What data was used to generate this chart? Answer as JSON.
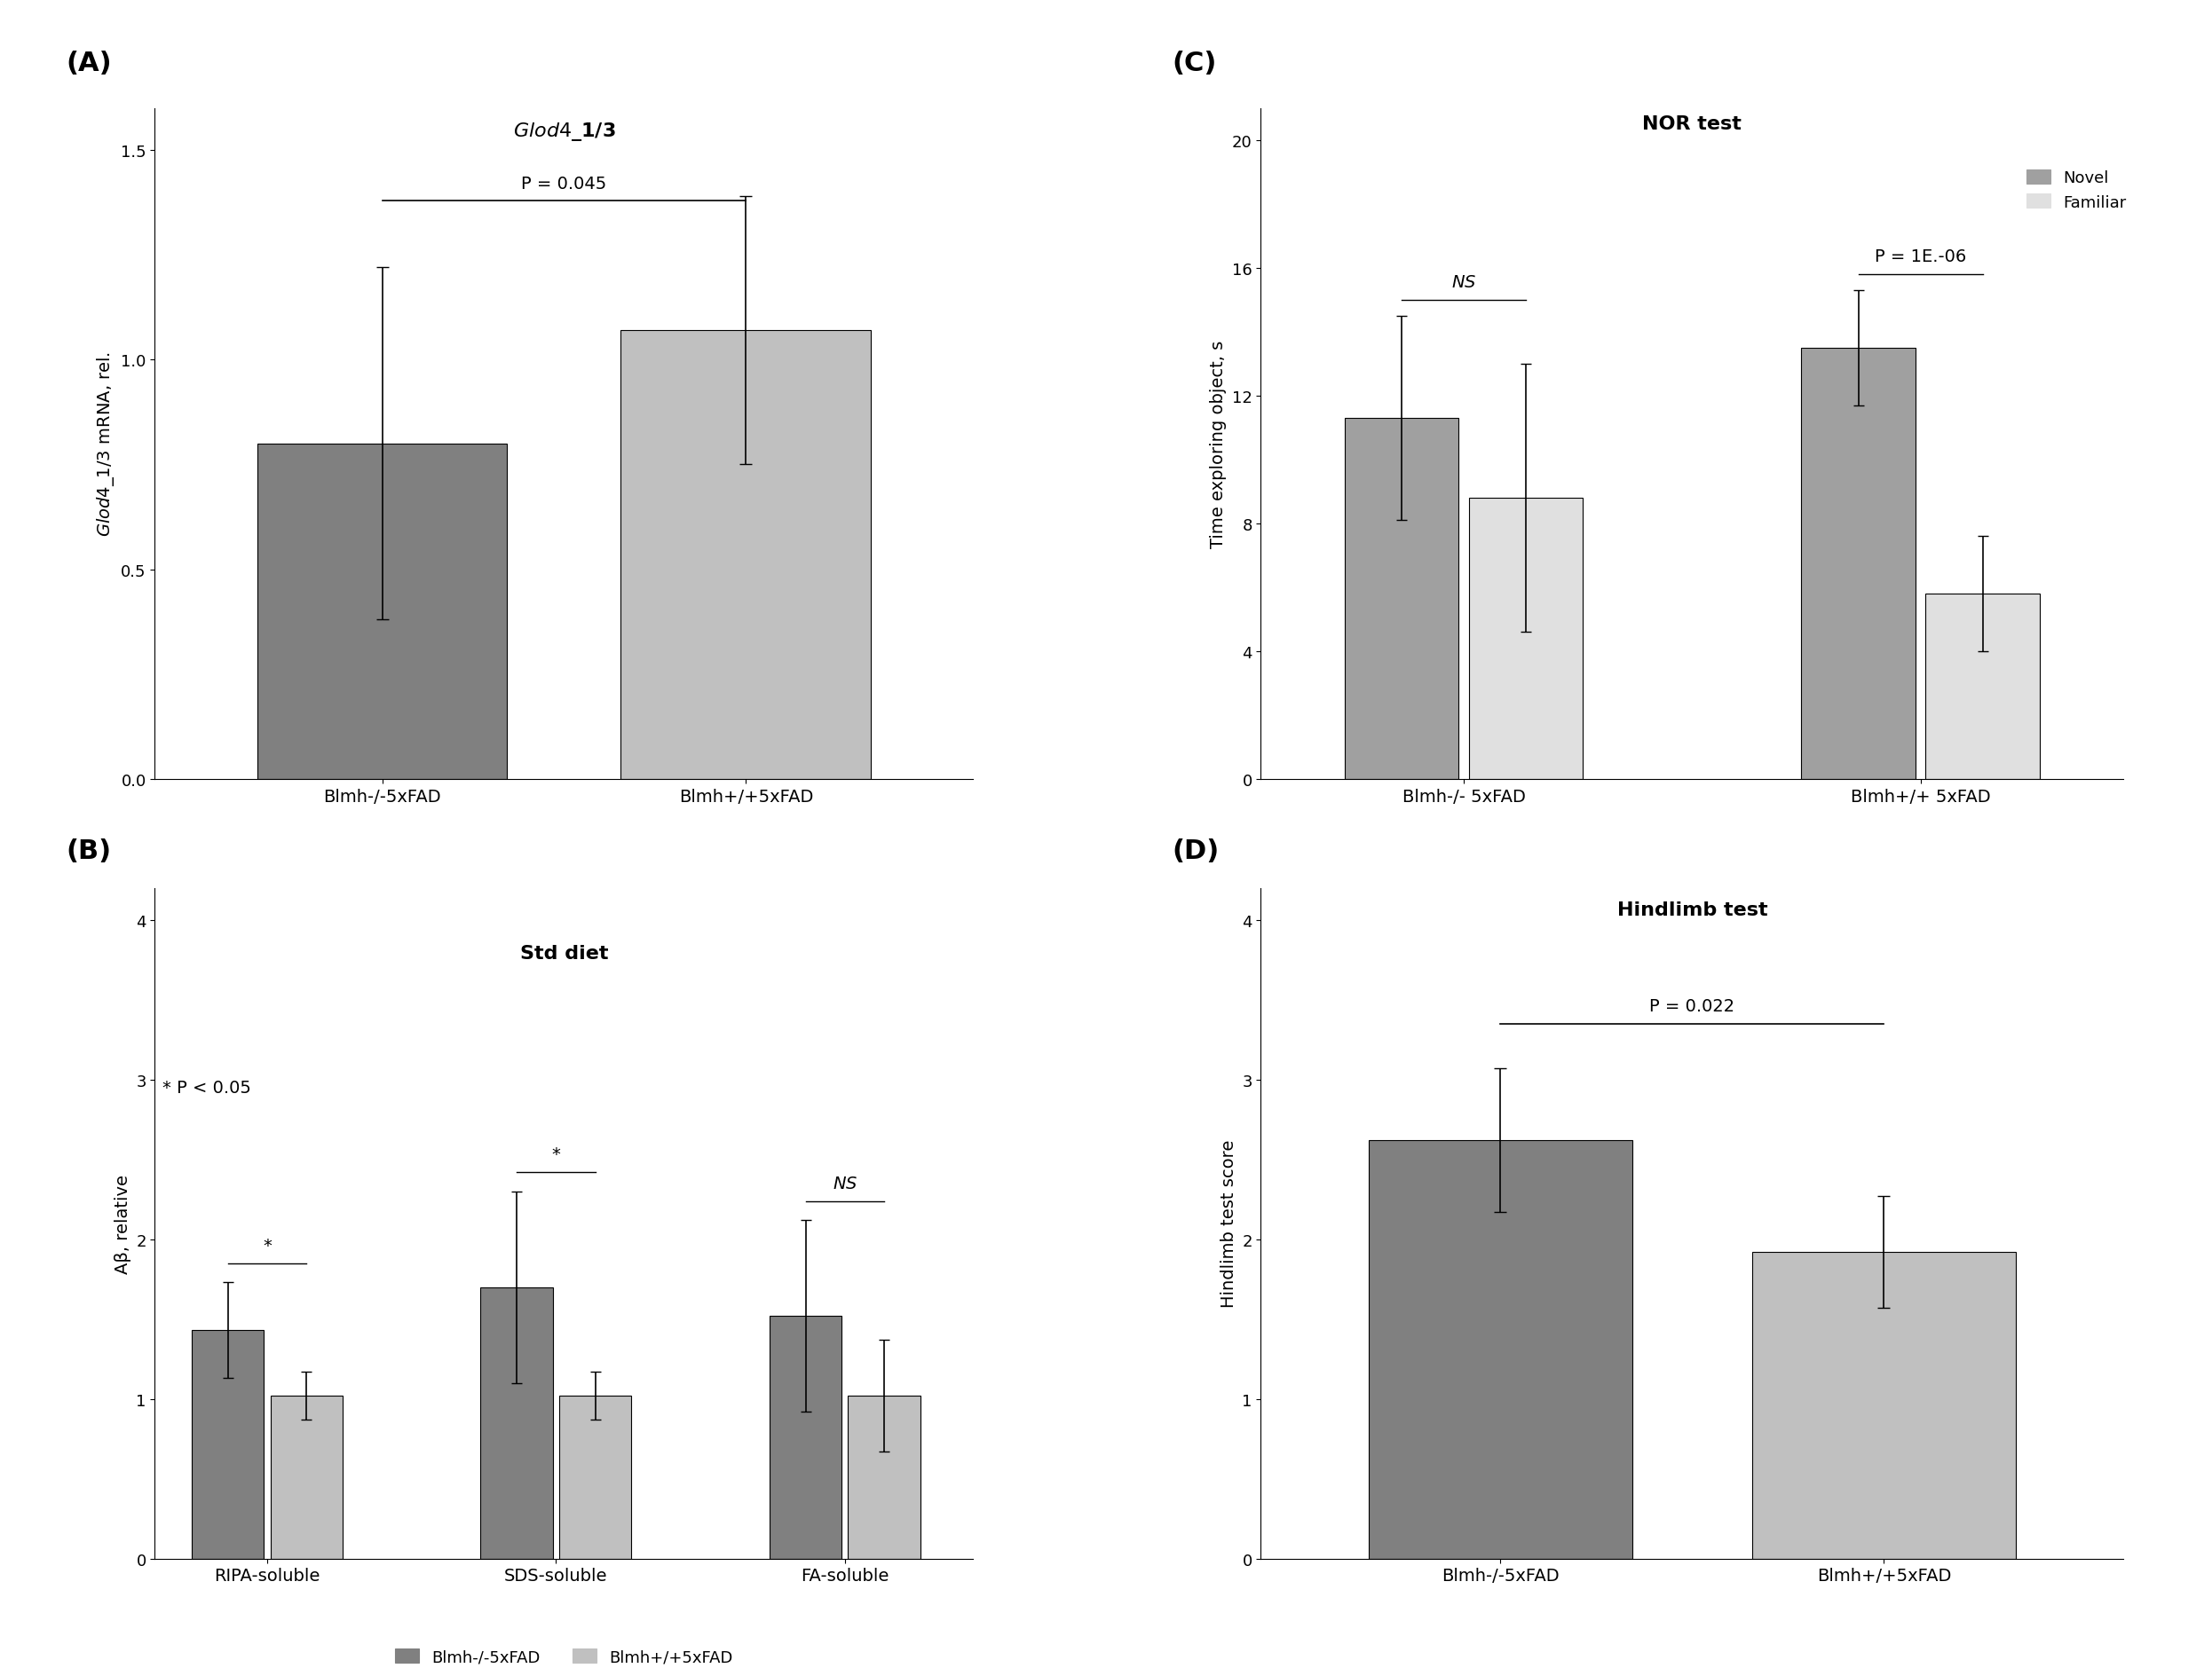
{
  "panel_A": {
    "title": "Glod4_1/3",
    "pvalue_text": "P = 0.045",
    "xlabel_labels": [
      "Blmh-/-5xFAD",
      "Blmh+/+5xFAD"
    ],
    "ylabel": "Glod4_1/3 mRNA, rel.",
    "bars": [
      0.8,
      1.07
    ],
    "errors": [
      0.42,
      0.32
    ],
    "bar_colors": [
      "#808080",
      "#c0c0c0"
    ],
    "ylim": [
      0,
      1.6
    ],
    "yticks": [
      0.0,
      0.5,
      1.0,
      1.5
    ]
  },
  "panel_B": {
    "title": "Std diet",
    "categories": [
      "RIPA-soluble",
      "SDS-soluble",
      "FA-soluble"
    ],
    "ylabel": "Aβ, relative",
    "bars_dark": [
      1.43,
      1.7,
      1.52
    ],
    "bars_light": [
      1.02,
      1.02,
      1.02
    ],
    "errors_dark": [
      0.3,
      0.6,
      0.6
    ],
    "errors_light": [
      0.15,
      0.15,
      0.35
    ],
    "bar_colors": [
      "#808080",
      "#c0c0c0"
    ],
    "ylim": [
      0,
      4.2
    ],
    "yticks": [
      0,
      1,
      2,
      3,
      4
    ],
    "sig_labels": [
      "*",
      "*",
      "NS"
    ],
    "sig_italic": [
      false,
      false,
      true
    ],
    "note": "* P < 0.05",
    "legend_labels": [
      "Blmh-/-5xFAD",
      "Blmh+/+5xFAD"
    ]
  },
  "panel_C": {
    "title": "NOR test",
    "ylabel": "Time exploring object, s",
    "xlabel_labels": [
      "Blmh-/- 5xFAD",
      "Blmh+/+ 5xFAD"
    ],
    "bars_novel": [
      11.3,
      13.5
    ],
    "bars_familiar": [
      8.8,
      5.8
    ],
    "errors_novel": [
      3.2,
      1.8
    ],
    "errors_familiar": [
      4.2,
      1.8
    ],
    "bar_color_novel": "#a0a0a0",
    "bar_color_familiar": "#e0e0e0",
    "ylim": [
      0,
      21
    ],
    "yticks": [
      0,
      4,
      8,
      12,
      16,
      20
    ],
    "sig_labels": [
      "NS",
      "P = 1E.-06"
    ],
    "sig_italic": [
      true,
      false
    ],
    "legend_labels": [
      "Novel",
      "Familiar"
    ]
  },
  "panel_D": {
    "title": "Hindlimb test",
    "pvalue_text": "P = 0.022",
    "xlabel_labels": [
      "Blmh-/-5xFAD",
      "Blmh+/+5xFAD"
    ],
    "ylabel": "Hindlimb test score",
    "bars": [
      2.62,
      1.92
    ],
    "errors": [
      0.45,
      0.35
    ],
    "bar_colors": [
      "#808080",
      "#c0c0c0"
    ],
    "ylim": [
      0,
      4.2
    ],
    "yticks": [
      0,
      1,
      2,
      3,
      4
    ]
  },
  "panel_labels": [
    "(A)",
    "(B)",
    "(C)",
    "(D)"
  ],
  "panel_label_fontsize": 22,
  "axis_label_fontsize": 14,
  "tick_fontsize": 13,
  "title_fontsize": 16,
  "sig_fontsize": 14,
  "legend_fontsize": 13,
  "background_color": "#ffffff"
}
